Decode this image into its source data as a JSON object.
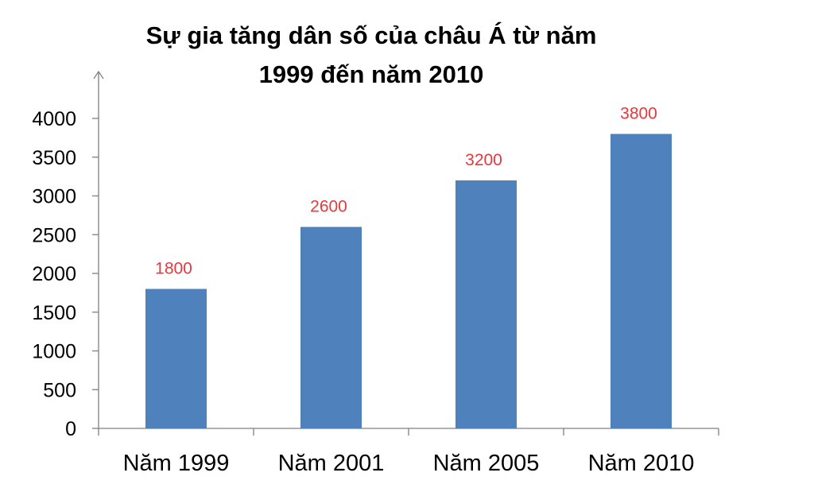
{
  "chart_data": {
    "type": "bar",
    "title_lines": [
      "Sự gia tăng dân số của châu Á từ năm",
      "1999 đến năm 2010"
    ],
    "categories": [
      "Năm 1999",
      "Năm 2001",
      "Năm 2005",
      "Năm 2010"
    ],
    "values": [
      1800,
      2600,
      3200,
      3800
    ],
    "ylim": [
      0,
      4000
    ],
    "yticks": [
      "0",
      "500",
      "1000",
      "1500",
      "2000",
      "2500",
      "3000",
      "3500",
      "4000"
    ],
    "data_labels": [
      "1800",
      "2600",
      "3200",
      "3800"
    ],
    "xlabel": "",
    "ylabel": "",
    "grid": false,
    "legend": "none",
    "colors": {
      "bar": "#4F81BD",
      "data_label": "#E8383D",
      "axis": "#808080"
    }
  }
}
